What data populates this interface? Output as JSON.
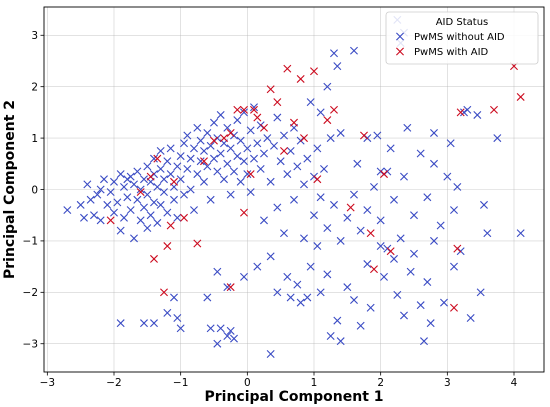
{
  "chart_data": {
    "type": "scatter",
    "xlabel": "Principal Component 1",
    "ylabel": "Principal Component 2",
    "xlim": [
      -3.05,
      4.45
    ],
    "ylim": [
      -3.55,
      3.55
    ],
    "xticks": [
      -3,
      -2,
      -1,
      0,
      1,
      2,
      3,
      4
    ],
    "yticks": [
      -3,
      -2,
      -1,
      0,
      1,
      2,
      3
    ],
    "grid": true,
    "legend": {
      "title": "AID Status",
      "placement": "top-right"
    },
    "series": [
      {
        "name": "PwMS without AID",
        "color": "#3a4bc4",
        "marker": "x",
        "points": [
          [
            -2.7,
            -0.4
          ],
          [
            -2.5,
            -0.3
          ],
          [
            -2.45,
            -0.55
          ],
          [
            -2.4,
            0.1
          ],
          [
            -2.35,
            -0.2
          ],
          [
            -2.3,
            -0.5
          ],
          [
            -2.25,
            -0.1
          ],
          [
            -2.2,
            0.0
          ],
          [
            -2.2,
            -0.6
          ],
          [
            -2.15,
            0.2
          ],
          [
            -2.1,
            -0.3
          ],
          [
            -2.05,
            -0.05
          ],
          [
            -2.0,
            0.15
          ],
          [
            -2.0,
            -0.45
          ],
          [
            -1.95,
            -0.25
          ],
          [
            -1.9,
            0.3
          ],
          [
            -1.9,
            -0.8
          ],
          [
            -1.85,
            0.05
          ],
          [
            -1.85,
            -0.55
          ],
          [
            -1.8,
            0.2
          ],
          [
            -1.8,
            -0.15
          ],
          [
            -1.75,
            0.25
          ],
          [
            -1.75,
            -0.4
          ],
          [
            -1.7,
            0.1
          ],
          [
            -1.7,
            -0.95
          ],
          [
            -1.65,
            -0.2
          ],
          [
            -1.65,
            0.35
          ],
          [
            -1.6,
            0.0
          ],
          [
            -1.6,
            -0.6
          ],
          [
            -1.55,
            0.2
          ],
          [
            -1.55,
            -0.35
          ],
          [
            -1.5,
            0.45
          ],
          [
            -1.5,
            -0.1
          ],
          [
            -1.5,
            -0.75
          ],
          [
            -1.45,
            0.15
          ],
          [
            -1.45,
            -0.5
          ],
          [
            -1.4,
            0.3
          ],
          [
            -1.4,
            -0.25
          ],
          [
            -1.4,
            0.6
          ],
          [
            -1.35,
            0.05
          ],
          [
            -1.35,
            -0.65
          ],
          [
            -1.3,
            0.4
          ],
          [
            -1.3,
            0.75
          ],
          [
            -1.3,
            -0.3
          ],
          [
            -1.25,
            0.2
          ],
          [
            -1.25,
            -0.05
          ],
          [
            -1.2,
            0.55
          ],
          [
            -1.2,
            -0.45
          ],
          [
            -1.15,
            0.3
          ],
          [
            -1.15,
            0.8
          ],
          [
            -1.1,
            0.05
          ],
          [
            -1.1,
            -0.2
          ],
          [
            -1.05,
            0.45
          ],
          [
            -1.05,
            -0.55
          ],
          [
            -1.0,
            0.65
          ],
          [
            -1.0,
            0.2
          ],
          [
            -0.95,
            0.9
          ],
          [
            -0.95,
            -0.1
          ],
          [
            -0.9,
            0.4
          ],
          [
            -0.9,
            1.05
          ],
          [
            -0.85,
            0.6
          ],
          [
            -0.85,
            0.0
          ],
          [
            -0.8,
            0.8
          ],
          [
            -0.8,
            -0.4
          ],
          [
            -0.75,
            0.3
          ],
          [
            -0.75,
            1.2
          ],
          [
            -0.7,
            0.55
          ],
          [
            -0.7,
            0.95
          ],
          [
            -0.65,
            0.15
          ],
          [
            -0.65,
            0.75
          ],
          [
            -0.6,
            1.1
          ],
          [
            -0.6,
            0.45
          ],
          [
            -0.55,
            0.85
          ],
          [
            -0.55,
            -0.2
          ],
          [
            -0.5,
            0.6
          ],
          [
            -0.5,
            1.3
          ],
          [
            -0.45,
            0.35
          ],
          [
            -0.45,
            1.0
          ],
          [
            -0.4,
            0.7
          ],
          [
            -0.4,
            1.45
          ],
          [
            -0.35,
            0.2
          ],
          [
            -0.35,
            0.9
          ],
          [
            -0.3,
            1.2
          ],
          [
            -0.3,
            0.5
          ],
          [
            -0.25,
            0.8
          ],
          [
            -0.25,
            -0.1
          ],
          [
            -0.2,
            1.05
          ],
          [
            -0.2,
            0.35
          ],
          [
            -0.15,
            0.65
          ],
          [
            -0.15,
            1.35
          ],
          [
            -0.1,
            0.95
          ],
          [
            -0.1,
            0.15
          ],
          [
            -0.05,
            0.55
          ],
          [
            -0.05,
            1.5
          ],
          [
            0.0,
            0.8
          ],
          [
            0.0,
            0.3
          ],
          [
            0.05,
            1.15
          ],
          [
            0.05,
            -0.05
          ],
          [
            0.1,
            0.6
          ],
          [
            0.1,
            1.6
          ],
          [
            0.15,
            0.9
          ],
          [
            0.2,
            0.4
          ],
          [
            0.2,
            1.25
          ],
          [
            0.25,
            0.7
          ],
          [
            0.3,
            1.0
          ],
          [
            0.35,
            0.15
          ],
          [
            0.4,
            0.85
          ],
          [
            0.45,
            1.4
          ],
          [
            0.5,
            0.55
          ],
          [
            0.55,
            1.05
          ],
          [
            0.6,
            0.3
          ],
          [
            0.65,
            0.75
          ],
          [
            0.7,
            1.2
          ],
          [
            0.75,
            0.45
          ],
          [
            0.8,
            0.95
          ],
          [
            0.85,
            0.1
          ],
          [
            0.9,
            0.6
          ],
          [
            0.95,
            1.7
          ],
          [
            1.0,
            0.25
          ],
          [
            1.05,
            0.8
          ],
          [
            1.1,
            1.5
          ],
          [
            1.15,
            0.4
          ],
          [
            1.2,
            2.0
          ],
          [
            1.25,
            1.0
          ],
          [
            1.3,
            2.65
          ],
          [
            1.35,
            2.4
          ],
          [
            1.4,
            1.1
          ],
          [
            1.6,
            2.7
          ],
          [
            2.25,
            3.3
          ],
          [
            2.3,
            2.85
          ],
          [
            2.35,
            3.05
          ],
          [
            -1.9,
            -2.6
          ],
          [
            -1.55,
            -2.6
          ],
          [
            -1.4,
            -2.6
          ],
          [
            -1.2,
            -2.4
          ],
          [
            -1.1,
            -2.1
          ],
          [
            -1.05,
            -2.5
          ],
          [
            -1.0,
            -2.7
          ],
          [
            -0.6,
            -2.1
          ],
          [
            -0.55,
            -2.7
          ],
          [
            -0.45,
            -3.0
          ],
          [
            -0.4,
            -2.7
          ],
          [
            -0.3,
            -2.85
          ],
          [
            -0.25,
            -2.75
          ],
          [
            -0.2,
            -2.9
          ],
          [
            -0.45,
            -1.6
          ],
          [
            -0.3,
            -1.9
          ],
          [
            -0.05,
            -1.7
          ],
          [
            0.15,
            -1.5
          ],
          [
            0.35,
            -1.3
          ],
          [
            0.35,
            -3.2
          ],
          [
            0.45,
            -2.0
          ],
          [
            0.6,
            -1.7
          ],
          [
            0.65,
            -2.1
          ],
          [
            0.75,
            -1.85
          ],
          [
            0.8,
            -2.2
          ],
          [
            0.9,
            -2.1
          ],
          [
            0.95,
            -1.5
          ],
          [
            1.05,
            -1.1
          ],
          [
            1.1,
            -2.0
          ],
          [
            1.2,
            -1.65
          ],
          [
            1.25,
            -2.85
          ],
          [
            1.35,
            -2.55
          ],
          [
            1.4,
            -2.95
          ],
          [
            1.5,
            -1.9
          ],
          [
            1.6,
            -2.15
          ],
          [
            1.7,
            -2.65
          ],
          [
            1.8,
            -1.45
          ],
          [
            1.85,
            -2.3
          ],
          [
            2.0,
            -1.1
          ],
          [
            2.05,
            -1.7
          ],
          [
            2.1,
            -1.15
          ],
          [
            2.2,
            -1.35
          ],
          [
            2.25,
            -2.05
          ],
          [
            2.3,
            -0.95
          ],
          [
            2.35,
            -2.45
          ],
          [
            2.45,
            -1.6
          ],
          [
            2.5,
            -1.25
          ],
          [
            2.6,
            -2.25
          ],
          [
            2.65,
            -2.95
          ],
          [
            2.7,
            -1.8
          ],
          [
            2.75,
            -2.6
          ],
          [
            2.8,
            -1.0
          ],
          [
            2.95,
            -2.2
          ],
          [
            3.1,
            -1.5
          ],
          [
            3.2,
            -1.2
          ],
          [
            3.35,
            -2.5
          ],
          [
            3.5,
            -2.0
          ],
          [
            0.25,
            -0.6
          ],
          [
            0.45,
            -0.35
          ],
          [
            0.55,
            -0.85
          ],
          [
            0.7,
            -0.2
          ],
          [
            0.85,
            -0.95
          ],
          [
            1.0,
            -0.5
          ],
          [
            1.1,
            -0.15
          ],
          [
            1.2,
            -0.75
          ],
          [
            1.3,
            -0.3
          ],
          [
            1.4,
            -1.0
          ],
          [
            1.5,
            -0.55
          ],
          [
            1.6,
            -0.1
          ],
          [
            1.7,
            -0.8
          ],
          [
            1.8,
            -0.4
          ],
          [
            1.9,
            0.05
          ],
          [
            2.0,
            -0.6
          ],
          [
            2.1,
            0.35
          ],
          [
            2.2,
            -0.2
          ],
          [
            2.35,
            0.25
          ],
          [
            2.5,
            -0.5
          ],
          [
            2.6,
            0.7
          ],
          [
            2.7,
            -0.15
          ],
          [
            2.8,
            0.5
          ],
          [
            2.9,
            -0.7
          ],
          [
            3.0,
            0.25
          ],
          [
            3.1,
            -0.4
          ],
          [
            3.15,
            0.05
          ],
          [
            3.25,
            1.5
          ],
          [
            3.3,
            1.55
          ],
          [
            3.45,
            1.45
          ],
          [
            3.55,
            -0.3
          ],
          [
            3.6,
            -0.85
          ],
          [
            3.75,
            1.0
          ],
          [
            4.1,
            -0.85
          ],
          [
            1.8,
            1.0
          ],
          [
            2.0,
            0.35
          ],
          [
            2.15,
            0.8
          ],
          [
            2.4,
            1.2
          ],
          [
            2.8,
            1.1
          ],
          [
            3.05,
            0.9
          ],
          [
            1.65,
            0.5
          ],
          [
            1.95,
            1.05
          ]
        ]
      },
      {
        "name": "PwMS with AID",
        "color": "#cc0a1e",
        "marker": "x",
        "points": [
          [
            -2.05,
            -0.6
          ],
          [
            -1.6,
            -0.05
          ],
          [
            -1.45,
            0.25
          ],
          [
            -1.4,
            -1.35
          ],
          [
            -1.35,
            0.6
          ],
          [
            -1.2,
            -1.1
          ],
          [
            -1.15,
            -0.7
          ],
          [
            -1.1,
            0.15
          ],
          [
            -0.95,
            -0.55
          ],
          [
            -0.75,
            -1.05
          ],
          [
            -0.65,
            0.55
          ],
          [
            -0.5,
            0.95
          ],
          [
            -0.35,
            1.0
          ],
          [
            -0.25,
            1.1
          ],
          [
            -0.15,
            1.55
          ],
          [
            -0.05,
            -0.45
          ],
          [
            -0.05,
            1.55
          ],
          [
            0.05,
            0.3
          ],
          [
            0.1,
            1.55
          ],
          [
            0.15,
            1.4
          ],
          [
            0.25,
            1.2
          ],
          [
            0.35,
            1.95
          ],
          [
            0.45,
            1.7
          ],
          [
            0.55,
            0.75
          ],
          [
            0.6,
            2.35
          ],
          [
            0.7,
            1.3
          ],
          [
            0.8,
            2.15
          ],
          [
            0.85,
            1.0
          ],
          [
            1.0,
            2.3
          ],
          [
            1.05,
            0.2
          ],
          [
            1.2,
            1.35
          ],
          [
            1.3,
            1.55
          ],
          [
            1.55,
            -0.35
          ],
          [
            1.75,
            1.05
          ],
          [
            1.85,
            -0.85
          ],
          [
            1.9,
            -1.55
          ],
          [
            2.05,
            0.3
          ],
          [
            2.15,
            -1.2
          ],
          [
            -1.25,
            -2.0
          ],
          [
            -0.25,
            -1.9
          ],
          [
            3.1,
            -2.3
          ],
          [
            3.15,
            -1.15
          ],
          [
            3.2,
            1.5
          ],
          [
            3.7,
            1.55
          ],
          [
            4.0,
            2.4
          ],
          [
            4.1,
            1.8
          ]
        ]
      }
    ]
  }
}
